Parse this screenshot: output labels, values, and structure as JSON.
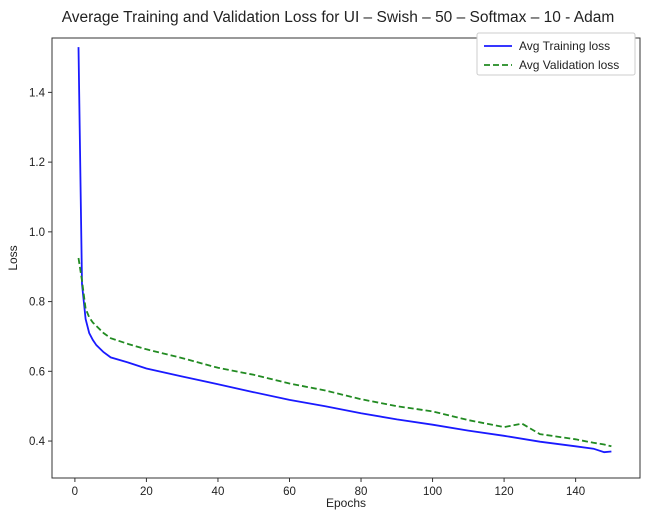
{
  "chart_data": {
    "type": "line",
    "title": "Average Training and Validation Loss for UI – Swish – 50 – Softmax – 10 - Adam",
    "xlabel": "Epochs",
    "ylabel": "Loss",
    "xlim": [
      -6.4,
      158
    ],
    "ylim": [
      0.294,
      1.556
    ],
    "xticks": [
      0,
      20,
      40,
      60,
      80,
      100,
      120,
      140
    ],
    "yticks": [
      0.4,
      0.6,
      0.8,
      1.0,
      1.2,
      1.4
    ],
    "ytick_labels": [
      "0.4",
      "0.6",
      "0.8",
      "1.0",
      "1.2",
      "1.4"
    ],
    "grid": false,
    "legend_placement": "top-right",
    "series": [
      {
        "name": "Avg Training loss",
        "color": "#1a1aff",
        "style": "solid",
        "x": [
          1,
          2,
          3,
          4,
          5,
          6,
          8,
          10,
          15,
          20,
          30,
          40,
          50,
          60,
          70,
          80,
          90,
          100,
          110,
          120,
          130,
          140,
          145,
          148,
          150
        ],
        "y": [
          1.53,
          0.85,
          0.75,
          0.71,
          0.69,
          0.675,
          0.655,
          0.64,
          0.625,
          0.608,
          0.585,
          0.563,
          0.54,
          0.518,
          0.5,
          0.48,
          0.462,
          0.447,
          0.43,
          0.415,
          0.398,
          0.385,
          0.378,
          0.368,
          0.37
        ]
      },
      {
        "name": "Avg Validation loss",
        "color": "#228b22",
        "style": "dashed",
        "x": [
          1,
          2,
          3,
          4,
          5,
          6,
          8,
          10,
          15,
          20,
          30,
          40,
          50,
          60,
          70,
          80,
          90,
          100,
          110,
          120,
          125,
          130,
          140,
          145,
          148,
          150
        ],
        "y": [
          0.925,
          0.86,
          0.78,
          0.755,
          0.74,
          0.73,
          0.71,
          0.695,
          0.678,
          0.663,
          0.638,
          0.61,
          0.59,
          0.565,
          0.545,
          0.52,
          0.5,
          0.485,
          0.46,
          0.44,
          0.45,
          0.42,
          0.405,
          0.395,
          0.39,
          0.385
        ]
      }
    ]
  }
}
